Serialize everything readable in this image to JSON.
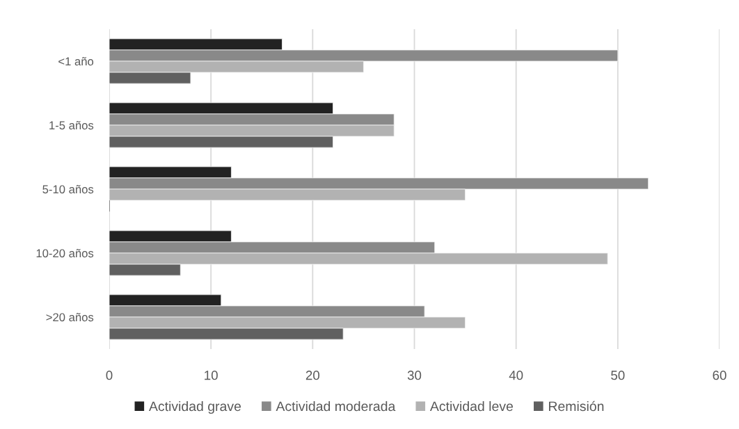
{
  "chart_data": {
    "type": "bar",
    "orientation": "horizontal",
    "categories": [
      "<1 año",
      "1-5 años",
      "5-10 años",
      "10-20 años",
      ">20 años"
    ],
    "series": [
      {
        "name": "Actividad grave",
        "color": "#222222",
        "values": [
          17,
          22,
          12,
          12,
          11
        ]
      },
      {
        "name": "Actividad moderada",
        "color": "#898989",
        "values": [
          50,
          28,
          53,
          32,
          31
        ]
      },
      {
        "name": "Actividad leve",
        "color": "#b2b2b2",
        "values": [
          25,
          28,
          35,
          49,
          35
        ]
      },
      {
        "name": "Remisión",
        "color": "#606060",
        "values": [
          8,
          22,
          0,
          7,
          23
        ]
      }
    ],
    "xlim": [
      0,
      60
    ],
    "xticks": [
      0,
      10,
      20,
      30,
      40,
      50,
      60
    ],
    "grid": "x",
    "legend": "bottom"
  }
}
